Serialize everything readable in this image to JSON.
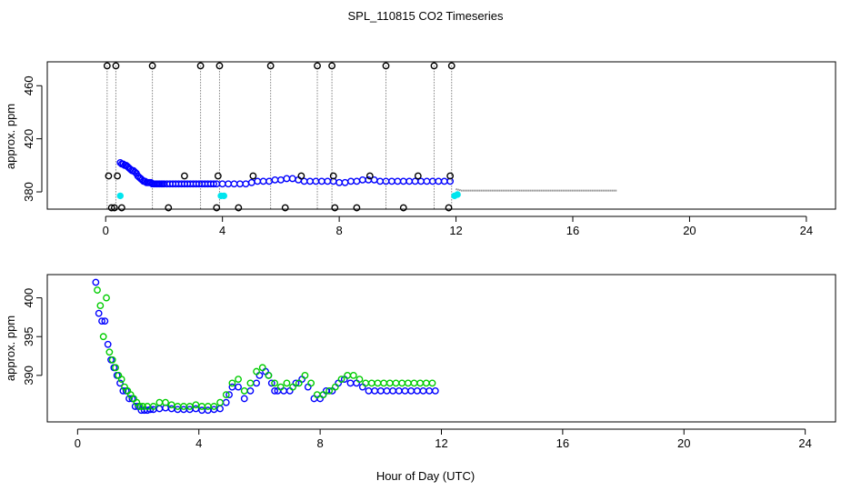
{
  "figure": {
    "title": "SPL_110815  CO2 Timeseries",
    "xlabel": "Hour of Day (UTC)"
  },
  "colors": {
    "axis": "#000000",
    "black_points": "#000000",
    "blue_points": "#0000ff",
    "cyan_points": "#00e5ee",
    "green_points": "#00cc00",
    "dotted": "#555555"
  },
  "chart_data": [
    {
      "type": "scatter",
      "panel": "top",
      "ylabel": "approx. ppm",
      "xlim": [
        -2,
        25
      ],
      "ylim": [
        367,
        478
      ],
      "x_ticks": [
        0,
        4,
        8,
        12,
        16,
        20,
        24
      ],
      "y_ticks": [
        380,
        420,
        460
      ],
      "series": [
        {
          "name": "co2_blue",
          "color": "blue",
          "x": [
            0.5,
            0.55,
            0.6,
            0.65,
            0.7,
            0.75,
            0.8,
            0.85,
            0.9,
            0.95,
            1.0,
            1.05,
            1.1,
            1.15,
            1.2,
            1.25,
            1.3,
            1.35,
            1.4,
            1.45,
            1.5,
            1.55,
            1.6,
            1.65,
            1.7,
            1.75,
            1.8,
            1.85,
            1.9,
            1.95,
            2.0,
            2.1,
            2.2,
            2.3,
            2.4,
            2.5,
            2.6,
            2.7,
            2.8,
            2.9,
            3.0,
            3.1,
            3.2,
            3.3,
            3.4,
            3.5,
            3.6,
            3.7,
            3.8,
            4.0,
            4.2,
            4.4,
            4.6,
            4.8,
            5.0,
            5.2,
            5.4,
            5.6,
            5.8,
            6.0,
            6.2,
            6.4,
            6.6,
            6.8,
            7.0,
            7.2,
            7.4,
            7.6,
            7.8,
            8.0,
            8.2,
            8.4,
            8.6,
            8.8,
            9.0,
            9.2,
            9.4,
            9.6,
            9.8,
            10.0,
            10.2,
            10.4,
            10.6,
            10.8,
            11.0,
            11.2,
            11.4,
            11.6,
            11.8
          ],
          "y": [
            402,
            401,
            401,
            400,
            400,
            399,
            398,
            397,
            396,
            396,
            395,
            394,
            392,
            391,
            390,
            389,
            388,
            388,
            387,
            387,
            387,
            387,
            386,
            386,
            386,
            386,
            386,
            386,
            386,
            386,
            386,
            386,
            386,
            386,
            386,
            386,
            386,
            386,
            386,
            386,
            386,
            386,
            386,
            386,
            386,
            386,
            386,
            386,
            386,
            386,
            386,
            386,
            386,
            386,
            387,
            388,
            388,
            388,
            389,
            389,
            390,
            390,
            389,
            388,
            388,
            388,
            388,
            388,
            388,
            387,
            387,
            388,
            388,
            389,
            389,
            389,
            388,
            388,
            388,
            388,
            388,
            388,
            388,
            388,
            388,
            388,
            388,
            388,
            388
          ]
        },
        {
          "name": "co2_black",
          "color": "black",
          "x": [
            0.05,
            0.1,
            0.2,
            0.3,
            0.35,
            0.4,
            0.55,
            1.6,
            2.15,
            2.7,
            3.25,
            3.8,
            3.85,
            3.9,
            4.55,
            5.05,
            5.65,
            6.15,
            6.7,
            7.25,
            7.75,
            7.8,
            7.85,
            8.6,
            9.05,
            9.6,
            10.2,
            10.7,
            11.25,
            11.75,
            11.8,
            11.85
          ],
          "y": [
            475,
            392,
            368,
            368,
            475,
            392,
            368,
            475,
            368,
            392,
            475,
            368,
            392,
            475,
            368,
            392,
            475,
            368,
            392,
            475,
            475,
            392,
            368,
            368,
            392,
            475,
            368,
            392,
            475,
            368,
            392,
            475
          ]
        },
        {
          "name": "co2_cyan",
          "color": "cyan",
          "x": [
            0.5,
            3.95,
            4.05,
            11.95,
            12.05
          ],
          "y": [
            377,
            377,
            377,
            377,
            378
          ]
        },
        {
          "name": "co2_trace",
          "color": "gray",
          "x": [
            12.0,
            12.2,
            17.5
          ],
          "y": [
            382,
            381,
            381
          ]
        }
      ]
    },
    {
      "type": "scatter",
      "panel": "bottom",
      "ylabel": "approx. ppm",
      "xlim": [
        -1,
        25
      ],
      "ylim": [
        384,
        403
      ],
      "x_ticks": [
        0,
        4,
        8,
        12,
        16,
        20,
        24
      ],
      "y_ticks": [
        390,
        395,
        400
      ],
      "series": [
        {
          "name": "co2_blue",
          "color": "blue",
          "x": [
            0.6,
            0.7,
            0.8,
            0.9,
            1.0,
            1.1,
            1.2,
            1.3,
            1.4,
            1.5,
            1.6,
            1.7,
            1.8,
            1.9,
            2.0,
            2.1,
            2.2,
            2.3,
            2.4,
            2.5,
            2.7,
            2.9,
            3.1,
            3.3,
            3.5,
            3.7,
            3.9,
            4.1,
            4.3,
            4.5,
            4.7,
            4.9,
            5.0,
            5.1,
            5.3,
            5.5,
            5.7,
            5.9,
            6.0,
            6.2,
            6.3,
            6.4,
            6.5,
            6.6,
            6.8,
            7.0,
            7.2,
            7.4,
            7.6,
            7.8,
            8.0,
            8.1,
            8.2,
            8.4,
            8.6,
            8.8,
            9.0,
            9.2,
            9.4,
            9.6,
            9.8,
            10.0,
            10.2,
            10.4,
            10.6,
            10.8,
            11.0,
            11.2,
            11.4,
            11.6,
            11.8
          ],
          "y": [
            402,
            398,
            397,
            397,
            394,
            392,
            391,
            390,
            389,
            388,
            388,
            387,
            387,
            386,
            386,
            385.5,
            385.5,
            385.5,
            385.6,
            385.6,
            385.7,
            385.8,
            385.7,
            385.6,
            385.6,
            385.6,
            385.7,
            385.5,
            385.5,
            385.6,
            385.7,
            386.5,
            387.5,
            388.5,
            388.5,
            387,
            388,
            389,
            390,
            390.5,
            390,
            389,
            388,
            388,
            388,
            388,
            389,
            389.5,
            388.5,
            387,
            387,
            387.5,
            388,
            388,
            389,
            389.5,
            389,
            389,
            388.5,
            388,
            388,
            388,
            388,
            388,
            388,
            388,
            388,
            388,
            388,
            388,
            388
          ]
        },
        {
          "name": "co2_green",
          "color": "green",
          "x": [
            0.65,
            0.75,
            0.85,
            0.95,
            1.05,
            1.15,
            1.25,
            1.35,
            1.45,
            1.55,
            1.65,
            1.75,
            1.85,
            1.95,
            2.05,
            2.15,
            2.3,
            2.5,
            2.7,
            2.9,
            3.1,
            3.3,
            3.5,
            3.7,
            3.9,
            4.1,
            4.3,
            4.5,
            4.7,
            4.9,
            5.1,
            5.3,
            5.5,
            5.7,
            5.9,
            6.1,
            6.3,
            6.5,
            6.7,
            6.9,
            7.1,
            7.3,
            7.5,
            7.7,
            7.9,
            8.1,
            8.3,
            8.5,
            8.7,
            8.9,
            9.1,
            9.3,
            9.5,
            9.7,
            9.9,
            10.1,
            10.3,
            10.5,
            10.7,
            10.9,
            11.1,
            11.3,
            11.5,
            11.7
          ],
          "y": [
            401,
            399,
            395,
            400,
            393,
            392,
            391,
            390,
            389.5,
            388.5,
            388,
            387.5,
            387,
            386.5,
            386,
            386,
            386,
            386,
            386.5,
            386.5,
            386.2,
            386,
            386,
            386,
            386.2,
            386,
            386,
            386,
            386.5,
            387.5,
            389,
            389.5,
            388,
            389,
            390.5,
            391,
            390,
            389,
            388.5,
            389,
            388.5,
            389,
            390,
            389,
            387.5,
            387.5,
            388,
            388.5,
            389.5,
            390,
            390,
            389.5,
            389,
            389,
            389,
            389,
            389,
            389,
            389,
            389,
            389,
            389,
            389,
            389
          ]
        }
      ]
    }
  ]
}
